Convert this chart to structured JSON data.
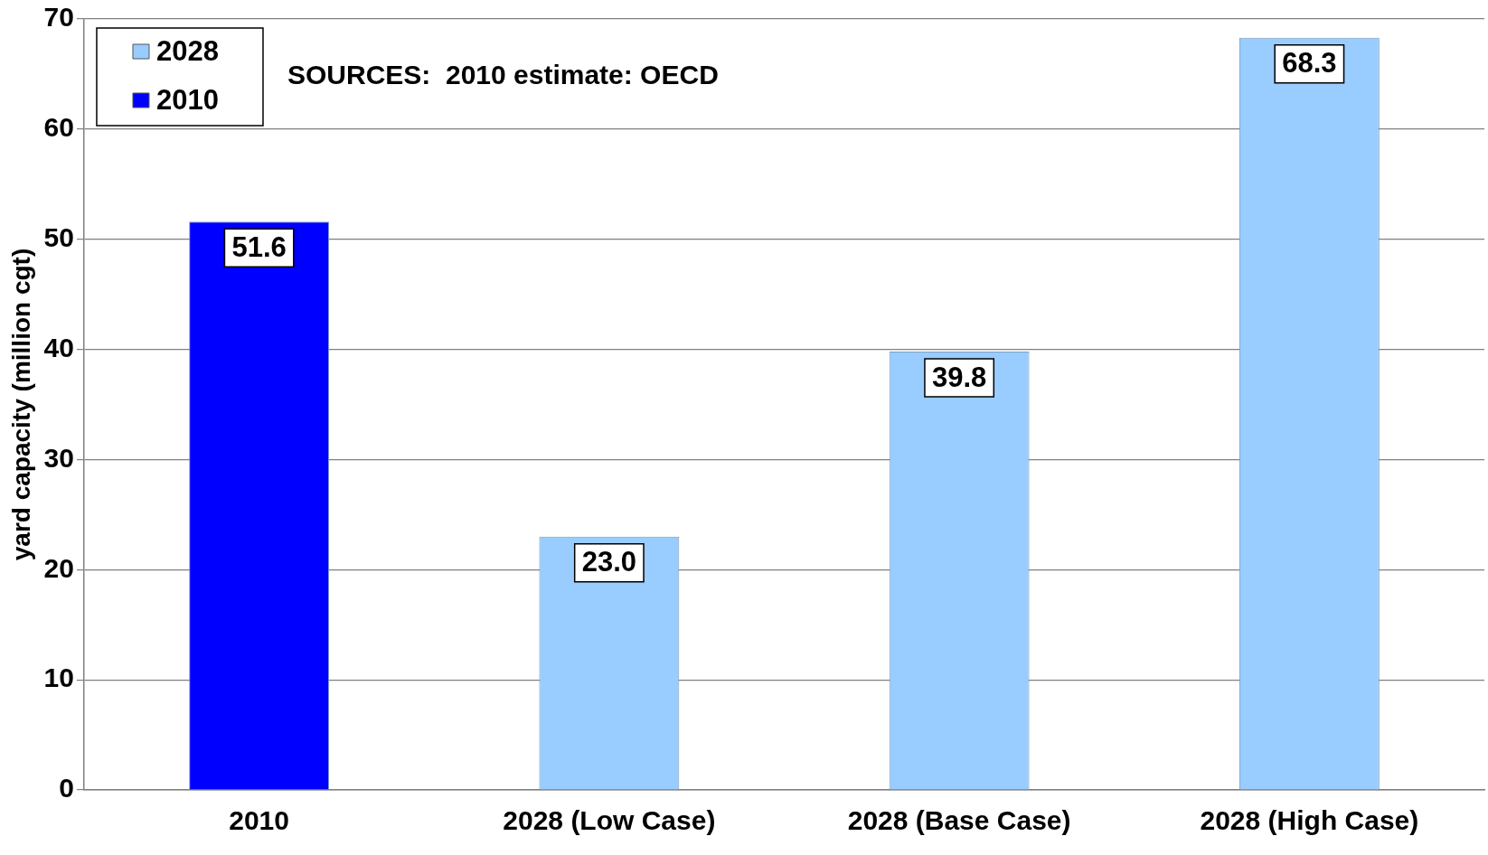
{
  "chart_data": {
    "type": "bar",
    "ylabel": "yard capacity (million cgt)",
    "categories": [
      "2010",
      "2028 (Low Case)",
      "2028 (Base Case)",
      "2028 (High Case)"
    ],
    "series": [
      {
        "name": "2028",
        "color": "#99ccff",
        "values": [
          null,
          23.0,
          39.8,
          68.3
        ],
        "value_labels": [
          null,
          "23.0",
          "39.8",
          "68.3"
        ]
      },
      {
        "name": "2010",
        "color": "#0000ff",
        "values": [
          51.6,
          null,
          null,
          null
        ],
        "value_labels": [
          "51.6",
          null,
          null,
          null
        ]
      }
    ],
    "ylim": [
      0,
      70
    ],
    "yticks": [
      0,
      10,
      20,
      30,
      40,
      50,
      60,
      70
    ],
    "grid": "y",
    "legend": "top left",
    "annotations": [
      "SOURCES:  2010 estimate: OECD"
    ]
  }
}
